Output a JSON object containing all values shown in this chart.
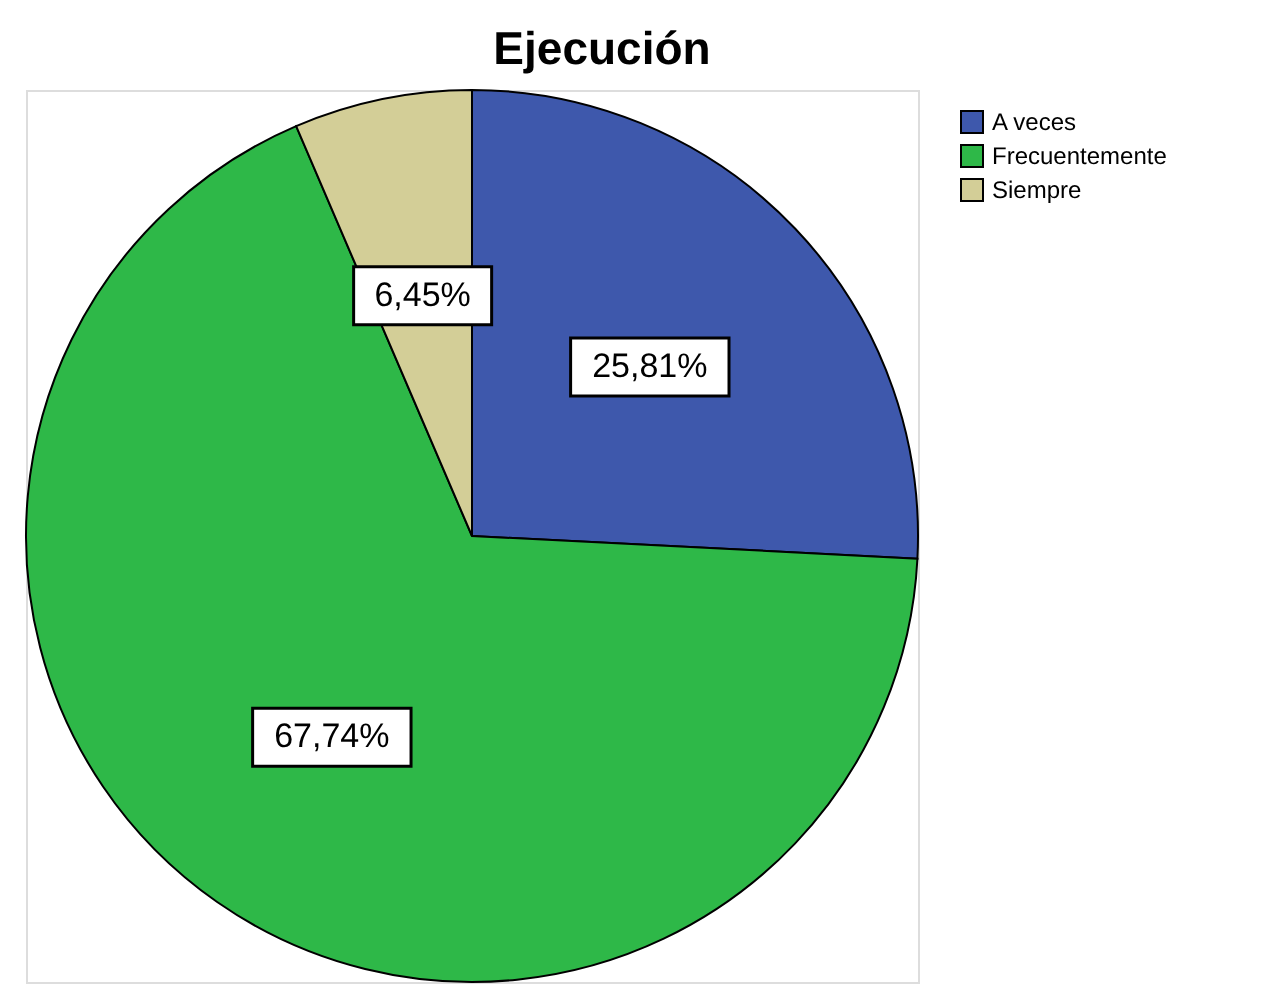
{
  "chart_data": {
    "type": "pie",
    "title": "Ejecución",
    "categories": [
      "A veces",
      "Frecuentemente",
      "Siempre"
    ],
    "values": [
      25.81,
      67.74,
      6.45
    ],
    "colors": [
      "#3e58ac",
      "#2eb848",
      "#d3ce97"
    ],
    "value_labels": [
      "25,81%",
      "67,74%",
      "6,45%"
    ],
    "legend": "top right"
  }
}
